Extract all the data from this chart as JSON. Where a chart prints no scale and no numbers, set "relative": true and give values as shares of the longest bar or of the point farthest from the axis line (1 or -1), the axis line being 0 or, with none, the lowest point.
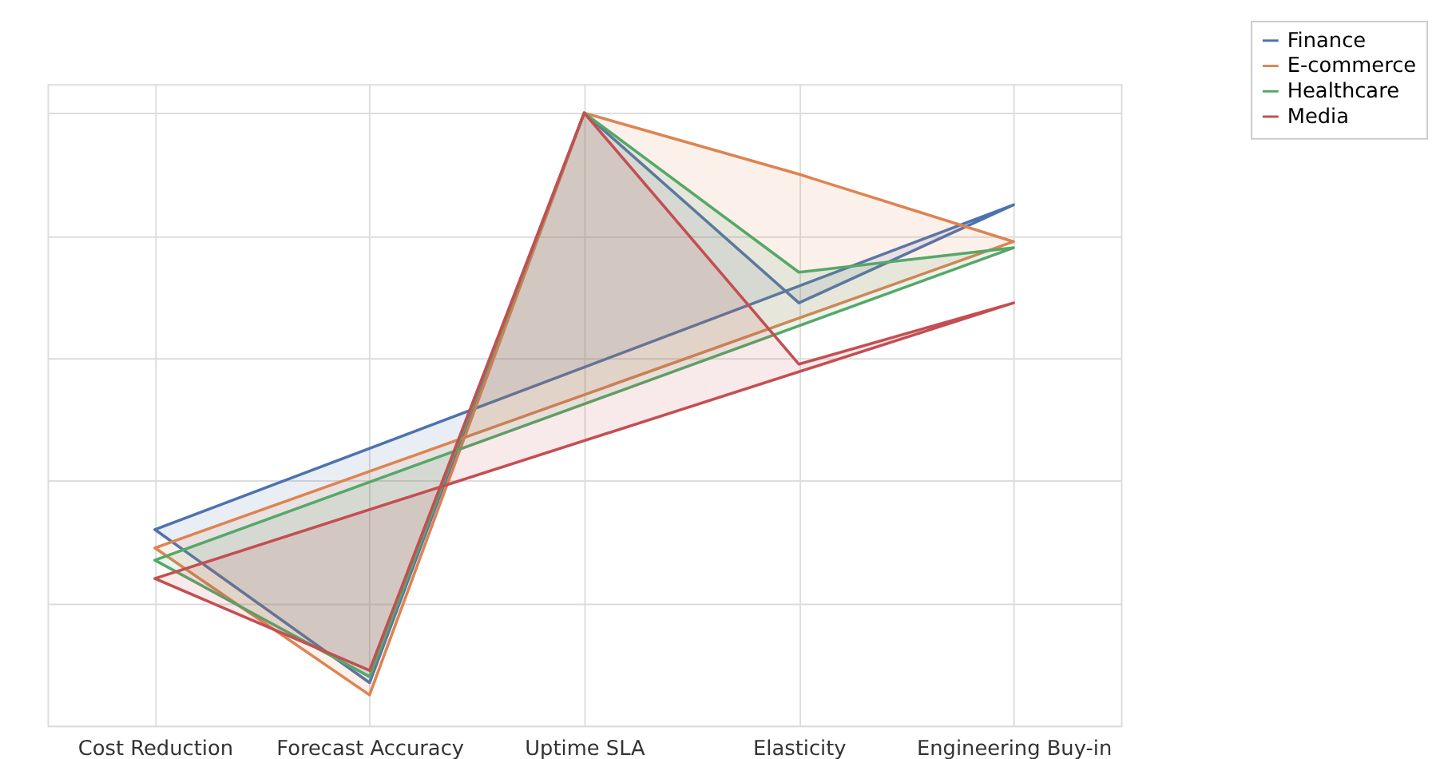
{
  "chart_data": {
    "type": "area",
    "relative": true,
    "grid": true,
    "legend": "top right",
    "tick_labels": "x",
    "categories": [
      "Cost Reduction",
      "Forecast Accuracy",
      "Uptime SLA",
      "Elasticity",
      "Engineering Buy-in"
    ],
    "series": [
      {
        "name": "Finance",
        "color": "#4c72b0",
        "values": [
          0.32,
          0.07,
          1,
          0.69,
          0.85
        ]
      },
      {
        "name": "E-commerce",
        "color": "#dd8452",
        "values": [
          0.29,
          0.05,
          1,
          0.9,
          0.79
        ]
      },
      {
        "name": "Healthcare",
        "color": "#55a868",
        "values": [
          0.27,
          0.08,
          1,
          0.74,
          0.78
        ]
      },
      {
        "name": "Media",
        "color": "#c44e52",
        "values": [
          0.24,
          0.09,
          1,
          0.59,
          0.69
        ]
      }
    ]
  }
}
